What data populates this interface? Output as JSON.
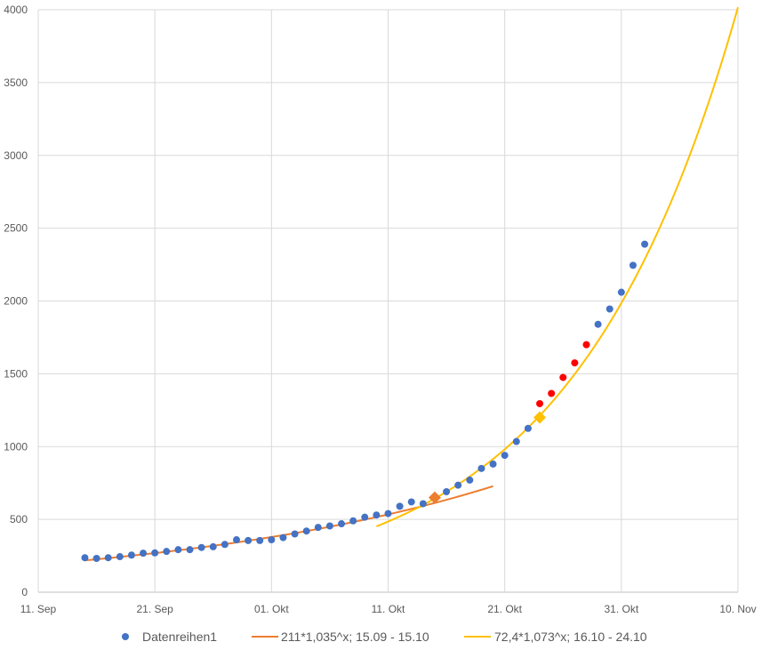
{
  "chart_data": {
    "type": "scatter",
    "title": "",
    "xlabel": "",
    "ylabel": "",
    "x_ticks": [
      "11. Sep",
      "21. Sep",
      "01. Okt",
      "11. Okt",
      "21. Okt",
      "31. Okt",
      "10. Nov"
    ],
    "xlim": [
      "2020-09-11",
      "2020-11-10"
    ],
    "ylim": [
      0,
      4000
    ],
    "y_ticks": [
      0,
      500,
      1000,
      1500,
      2000,
      2500,
      3000,
      3500,
      4000
    ],
    "grid": true,
    "legend_position": "bottom",
    "series": [
      {
        "name": "Datenreihen1",
        "kind": "markers",
        "color": "#4472C4",
        "points": [
          {
            "x": "2020-09-15",
            "y": 237
          },
          {
            "x": "2020-09-16",
            "y": 232
          },
          {
            "x": "2020-09-17",
            "y": 237
          },
          {
            "x": "2020-09-18",
            "y": 244
          },
          {
            "x": "2020-09-19",
            "y": 255
          },
          {
            "x": "2020-09-20",
            "y": 268
          },
          {
            "x": "2020-09-21",
            "y": 270
          },
          {
            "x": "2020-09-22",
            "y": 280
          },
          {
            "x": "2020-09-23",
            "y": 292
          },
          {
            "x": "2020-09-24",
            "y": 292
          },
          {
            "x": "2020-09-25",
            "y": 307
          },
          {
            "x": "2020-09-26",
            "y": 312
          },
          {
            "x": "2020-09-27",
            "y": 328
          },
          {
            "x": "2020-09-28",
            "y": 360
          },
          {
            "x": "2020-09-29",
            "y": 355
          },
          {
            "x": "2020-09-30",
            "y": 355
          },
          {
            "x": "2020-10-01",
            "y": 360
          },
          {
            "x": "2020-10-02",
            "y": 375
          },
          {
            "x": "2020-10-03",
            "y": 400
          },
          {
            "x": "2020-10-04",
            "y": 420
          },
          {
            "x": "2020-10-05",
            "y": 445
          },
          {
            "x": "2020-10-06",
            "y": 455
          },
          {
            "x": "2020-10-07",
            "y": 470
          },
          {
            "x": "2020-10-08",
            "y": 490
          },
          {
            "x": "2020-10-09",
            "y": 515
          },
          {
            "x": "2020-10-10",
            "y": 530
          },
          {
            "x": "2020-10-11",
            "y": 540
          },
          {
            "x": "2020-10-12",
            "y": 590
          },
          {
            "x": "2020-10-13",
            "y": 620
          },
          {
            "x": "2020-10-14",
            "y": 608
          },
          {
            "x": "2020-10-15",
            "y": 650
          },
          {
            "x": "2020-10-16",
            "y": 690
          },
          {
            "x": "2020-10-17",
            "y": 735
          },
          {
            "x": "2020-10-18",
            "y": 770
          },
          {
            "x": "2020-10-19",
            "y": 850
          },
          {
            "x": "2020-10-20",
            "y": 880
          },
          {
            "x": "2020-10-21",
            "y": 940
          },
          {
            "x": "2020-10-22",
            "y": 1035
          },
          {
            "x": "2020-10-23",
            "y": 1125
          },
          {
            "x": "2020-10-29",
            "y": 1840
          },
          {
            "x": "2020-10-30",
            "y": 1945
          },
          {
            "x": "2020-10-31",
            "y": 2060
          },
          {
            "x": "2020-11-01",
            "y": 2245
          },
          {
            "x": "2020-11-02",
            "y": 2390
          }
        ]
      },
      {
        "name": "211*1,035^x; 15.09 - 15.10",
        "kind": "line",
        "color": "#ED7D31",
        "formula": {
          "a": 211,
          "b": 1.035,
          "base_date": "2020-09-14"
        },
        "x_range": [
          "2020-09-15",
          "2020-10-20"
        ]
      },
      {
        "name": "72,4*1,073^x; 16.10 - 24.10",
        "kind": "line",
        "color": "#FFC000",
        "formula": {
          "a": 72.4,
          "b": 1.073,
          "base_date": "2020-09-14"
        },
        "x_range": [
          "2020-10-10",
          "2020-11-10"
        ]
      }
    ],
    "extra_markers": [
      {
        "role": "projection",
        "color": "#FF0000",
        "shape": "circle",
        "points": [
          {
            "x": "2020-10-24",
            "y": 1295
          },
          {
            "x": "2020-10-25",
            "y": 1365
          },
          {
            "x": "2020-10-26",
            "y": 1475
          },
          {
            "x": "2020-10-27",
            "y": 1575
          },
          {
            "x": "2020-10-28",
            "y": 1700
          }
        ]
      },
      {
        "role": "highlight",
        "color": "#ED7D31",
        "shape": "diamond",
        "points": [
          {
            "x": "2020-10-15",
            "y": 650
          }
        ]
      },
      {
        "role": "highlight",
        "color": "#FFC000",
        "shape": "diamond",
        "points": [
          {
            "x": "2020-10-24",
            "y": 1200
          }
        ]
      }
    ]
  }
}
